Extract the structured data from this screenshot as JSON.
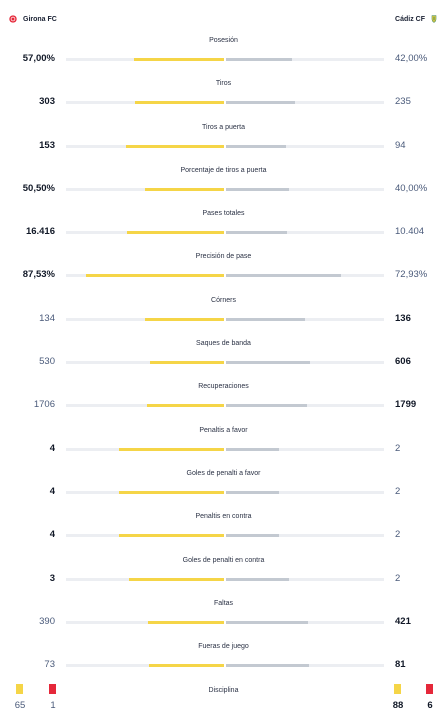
{
  "home_team": {
    "name": "Girona FC",
    "color": "#e5283a"
  },
  "away_team": {
    "name": "Cádiz CF",
    "color": "#f5d547"
  },
  "stats": [
    {
      "label": "Posesión",
      "home": "57,00%",
      "away": "42,00%",
      "home_share": 0.57,
      "away_share": 0.42,
      "winner": "home"
    },
    {
      "label": "Tiros",
      "home": "303",
      "away": "235",
      "home_share": 0.563,
      "away_share": 0.437,
      "winner": "home"
    },
    {
      "label": "Tiros a puerta",
      "home": "153",
      "away": "94",
      "home_share": 0.619,
      "away_share": 0.381,
      "winner": "home"
    },
    {
      "label": "Porcentaje de tiros a puerta",
      "home": "50,50%",
      "away": "40,00%",
      "home_share": 0.5,
      "away_share": 0.4,
      "winner": "home"
    },
    {
      "label": "Pases totales",
      "home": "16.416",
      "away": "10.404",
      "home_share": 0.612,
      "away_share": 0.388,
      "winner": "home"
    },
    {
      "label": "Precisión de pase",
      "home": "87,53%",
      "away": "72,93%",
      "home_share": 0.8753,
      "away_share": 0.7293,
      "winner": "home"
    },
    {
      "label": "Córners",
      "home": "134",
      "away": "136",
      "home_share": 0.5,
      "away_share": 0.5,
      "winner": "away"
    },
    {
      "label": "Saques de banda",
      "home": "530",
      "away": "606",
      "home_share": 0.467,
      "away_share": 0.533,
      "winner": "away"
    },
    {
      "label": "Recuperaciones",
      "home": "1706",
      "away": "1799",
      "home_share": 0.487,
      "away_share": 0.513,
      "winner": "away"
    },
    {
      "label": "Penaltis a favor",
      "home": "4",
      "away": "2",
      "home_share": 0.667,
      "away_share": 0.333,
      "winner": "home"
    },
    {
      "label": "Goles de penalti a favor",
      "home": "4",
      "away": "2",
      "home_share": 0.667,
      "away_share": 0.333,
      "winner": "home"
    },
    {
      "label": "Penaltis en contra",
      "home": "4",
      "away": "2",
      "home_share": 0.667,
      "away_share": 0.333,
      "winner": "home"
    },
    {
      "label": "Goles de penalti en contra",
      "home": "3",
      "away": "2",
      "home_share": 0.6,
      "away_share": 0.4,
      "winner": "home"
    },
    {
      "label": "Faltas",
      "home": "390",
      "away": "421",
      "home_share": 0.481,
      "away_share": 0.519,
      "winner": "away"
    },
    {
      "label": "Fueras de juego",
      "home": "73",
      "away": "81",
      "home_share": 0.474,
      "away_share": 0.526,
      "winner": "away"
    }
  ],
  "discipline": {
    "label": "Disciplina",
    "home_yellow": "65",
    "home_red": "1",
    "away_yellow": "88",
    "away_red": "6",
    "yellow_color": "#f5d547",
    "red_color": "#e5283a"
  }
}
